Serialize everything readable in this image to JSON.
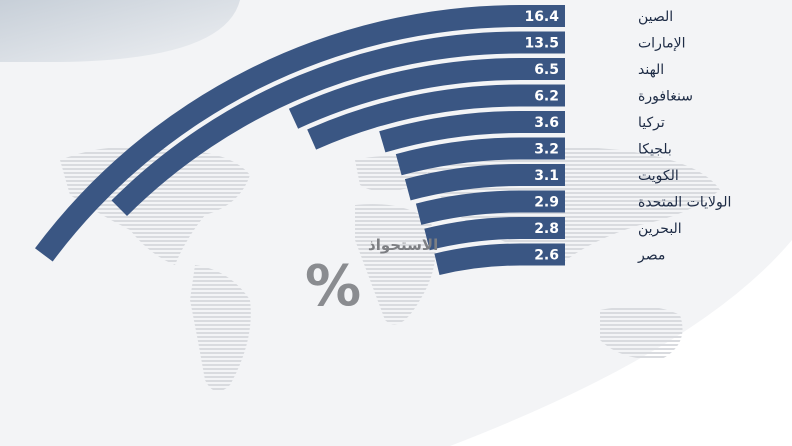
{
  "chart_data": {
    "type": "bar",
    "unit_label": "الاستحواذ",
    "unit_symbol": "%",
    "categories": [
      "الصين",
      "الإمارات",
      "الهند",
      "سنغافورة",
      "تركيا",
      "بلجيكا",
      "الكويت",
      "الولايات المتحدة",
      "البحرين",
      "مصر"
    ],
    "values": [
      16.4,
      13.5,
      6.5,
      6.2,
      3.6,
      3.2,
      3.1,
      2.9,
      2.8,
      2.6
    ],
    "value_labels": [
      "16.4",
      "13.5",
      "6.5",
      "6.2",
      "3.6",
      "3.2",
      "3.1",
      "2.9",
      "2.8",
      "2.6"
    ],
    "bar_color": "#3a5683",
    "text_color": "#1d2b45",
    "background_color": "#f3f4f6"
  }
}
